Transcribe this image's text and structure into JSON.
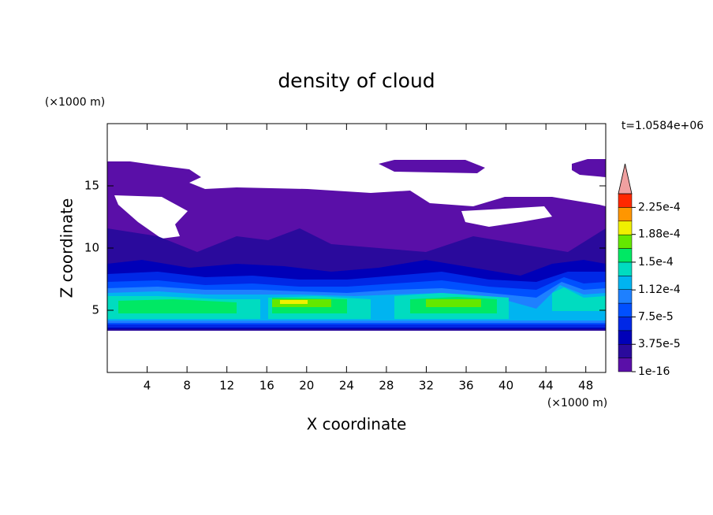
{
  "chart_data": {
    "type": "contour",
    "title": "density of cloud",
    "x_label": "X coordinate",
    "y_label": "Z coordinate",
    "x_unit": "(×1000 m)",
    "y_unit": "(×1000 m)",
    "annotation": "t=1.0584e+06",
    "xlim": [
      0,
      50
    ],
    "ylim": [
      0,
      20
    ],
    "xticks": [
      4,
      8,
      12,
      16,
      20,
      24,
      28,
      32,
      36,
      40,
      44,
      48
    ],
    "yticks": [
      5,
      10,
      15
    ],
    "colorbar": {
      "levels": [
        1e-16,
        1.875e-05,
        3.75e-05,
        5.625e-05,
        7.5e-05,
        9.375e-05,
        0.0001125,
        0.00013125,
        0.00015,
        0.00016875,
        0.0001875,
        0.00020625,
        0.000225,
        0.00024375
      ],
      "colors": [
        "#5a0fa8",
        "#2a0a9c",
        "#0000b8",
        "#0028e6",
        "#0050ff",
        "#1e80ff",
        "#00b4f0",
        "#00dcc0",
        "#00e864",
        "#64e800",
        "#f0f000",
        "#ff9600",
        "#ff2800"
      ],
      "extend_color": "#f0a0a0",
      "ticks": [
        1e-16,
        {
          "value": 3.75e-05,
          "label": "3.75e-5"
        },
        {
          "value": 7.5e-05,
          "label": "7.5e-5"
        },
        {
          "value": 0.000112,
          "label": "1.12e-4"
        },
        {
          "value": 0.00015,
          "label": "1.5e-4"
        },
        {
          "value": 0.000188,
          "label": "1.88e-4"
        },
        {
          "value": 0.000225,
          "label": "2.25e-4"
        }
      ]
    }
  }
}
